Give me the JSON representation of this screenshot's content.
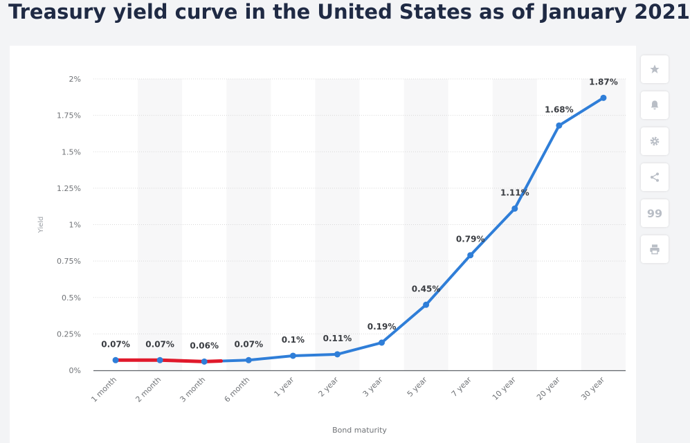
{
  "page": {
    "title": "Treasury yield curve in the United States as of January 2021"
  },
  "toolbar": {
    "icons": [
      "star-icon",
      "bell-icon",
      "gear-icon",
      "share-icon",
      "quote-icon",
      "print-icon"
    ],
    "quote_glyph": "99"
  },
  "chart_data": {
    "type": "line",
    "categories": [
      "1 month",
      "2 month",
      "3 month",
      "6 month",
      "1 year",
      "2 year",
      "3 year",
      "5 year",
      "7 year",
      "10 year",
      "20 year",
      "30 year"
    ],
    "series": [
      {
        "values": [
          0.07,
          0.07,
          0.06,
          0.07,
          0.1,
          0.11,
          0.19,
          0.45,
          0.79,
          1.11,
          1.68,
          1.87
        ],
        "color": "#2f7ed8"
      }
    ],
    "data_labels": [
      "0.07%",
      "0.07%",
      "0.06%",
      "0.07%",
      "0.1%",
      "0.11%",
      "0.19%",
      "0.45%",
      "0.79%",
      "1.11%",
      "1.68%",
      "1.87%"
    ],
    "highlight": {
      "color": "#e0192b",
      "values": [
        0.07,
        0.07,
        0.06,
        0.064
      ]
    },
    "yticks": [
      "0%",
      "0.25%",
      "0.5%",
      "0.75%",
      "1%",
      "1.25%",
      "1.5%",
      "1.75%",
      "2%"
    ],
    "xlabel": "Bond maturity",
    "ylabel": "Yield",
    "ylim": [
      0,
      2
    ],
    "grid": true,
    "alternating_column_bands": true,
    "band_color": "#f7f7f8"
  }
}
